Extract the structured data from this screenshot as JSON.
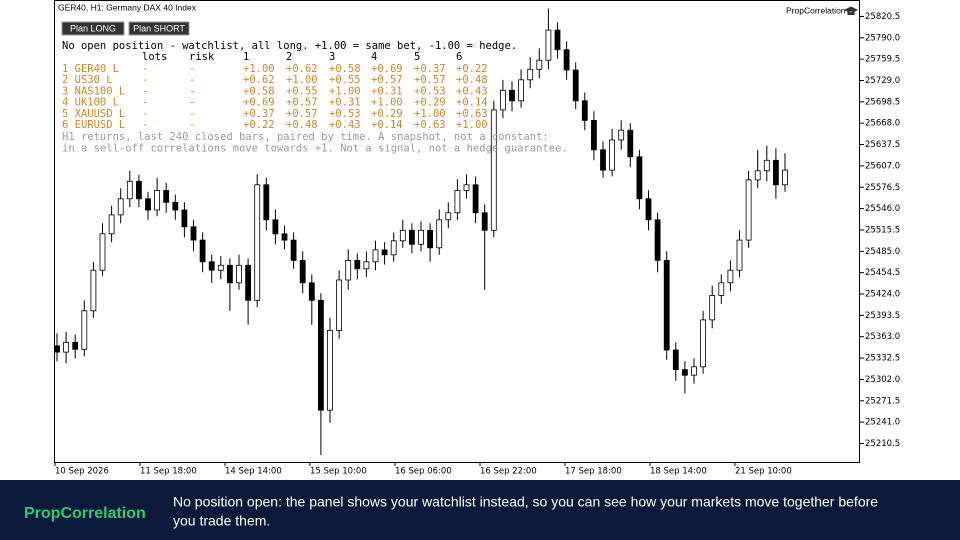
{
  "header": {
    "symbol": "GER40, H1:  Germany DAX 40 Index",
    "brand": "PropCorrelation"
  },
  "buttons": [
    "Plan LONG",
    "Plan SHORT"
  ],
  "panel": {
    "status": "No open position - watchlist, all long. +1.00 = same bet, -1.00 = hedge.",
    "columns": [
      "lots",
      "risk",
      "1",
      "2",
      "3",
      "4",
      "5",
      "6"
    ],
    "rows": [
      [
        "1 GER40 L",
        "-",
        "-",
        "+1.00",
        "+0.62",
        "+0.58",
        "+0.69",
        "+0.37",
        "+0.22"
      ],
      [
        "2 US30 L",
        "-",
        "-",
        "+0.62",
        "+1.00",
        "+0.55",
        "+0.57",
        "+0.57",
        "+0.48"
      ],
      [
        "3 NAS100 L",
        "-",
        "-",
        "+0.58",
        "+0.55",
        "+1.00",
        "+0.31",
        "+0.53",
        "+0.43"
      ],
      [
        "4 UK100 L",
        "-",
        "-",
        "+0.69",
        "+0.57",
        "+0.31",
        "+1.00",
        "+0.29",
        "+0.14"
      ],
      [
        "5 XAUUSD L",
        "-",
        "-",
        "+0.37",
        "+0.57",
        "+0.53",
        "+0.29",
        "+1.00",
        "+0.63"
      ],
      [
        "6 EURUSD L",
        "-",
        "-",
        "+0.22",
        "+0.48",
        "+0.43",
        "+0.14",
        "+0.63",
        "+1.00"
      ]
    ],
    "notes": [
      "H1 returns, last 240 closed bars, paired by time. A snapshot, not a constant:",
      "in a sell-off correlations move towards +1. Not a signal, not a hedge guarantee."
    ]
  },
  "chart_data": {
    "type": "candlestick",
    "open": [
      25350,
      25341,
      25355,
      25345,
      25400,
      25458,
      25510,
      25537,
      25560,
      25585,
      25560,
      25544,
      25572,
      25555,
      25544,
      25520,
      25501,
      25470,
      25458,
      25465,
      25440,
      25465,
      25415,
      25580,
      25530,
      25510,
      25501,
      25472,
      25440,
      25415,
      25258,
      25372,
      25444,
      25472,
      25460,
      25470,
      25487,
      25480,
      25500,
      25515,
      25495,
      25515,
      25490,
      25530,
      25540,
      25572,
      25580,
      25540,
      25515,
      25687,
      25715,
      25700,
      25730,
      25745,
      25758,
      25801,
      25773,
      25744,
      25700,
      25672,
      25630,
      25601,
      25644,
      25658,
      25620,
      25560,
      25530,
      25472,
      25344,
      25316,
      25308,
      25320,
      25387,
      25422,
      25440,
      25458,
      25501,
      25587,
      25600,
      25615,
      25580
    ],
    "high": [
      25368,
      25370,
      25366,
      25415,
      25470,
      25525,
      25550,
      25575,
      25600,
      25594,
      25570,
      25590,
      25583,
      25566,
      25555,
      25530,
      25512,
      25480,
      25478,
      25475,
      25480,
      25475,
      25595,
      25590,
      25545,
      25522,
      25512,
      25485,
      25452,
      25425,
      25390,
      25458,
      25488,
      25482,
      25485,
      25500,
      25498,
      25512,
      25530,
      25525,
      25528,
      25525,
      25545,
      25555,
      25588,
      25595,
      25592,
      25552,
      25700,
      25730,
      25728,
      25745,
      25762,
      25775,
      25832,
      25812,
      25785,
      25755,
      25712,
      25685,
      25642,
      25660,
      25672,
      25668,
      25630,
      25572,
      25540,
      25485,
      25355,
      25328,
      25332,
      25400,
      25436,
      25452,
      25472,
      25515,
      25600,
      25630,
      25636,
      25632,
      25625
    ],
    "low": [
      25328,
      25325,
      25332,
      25335,
      25390,
      25450,
      25498,
      25525,
      25548,
      25548,
      25530,
      25535,
      25540,
      25530,
      25505,
      25485,
      25455,
      25440,
      25445,
      25400,
      25430,
      25380,
      25405,
      25515,
      25495,
      25488,
      25460,
      25425,
      25380,
      25194,
      25240,
      25360,
      25430,
      25445,
      25448,
      25458,
      25466,
      25470,
      25490,
      25482,
      25485,
      25470,
      25480,
      25518,
      25530,
      25560,
      25525,
      25430,
      25505,
      25675,
      25685,
      25690,
      25718,
      25732,
      25745,
      25760,
      25730,
      25688,
      25658,
      25615,
      25590,
      25592,
      25630,
      25605,
      25545,
      25515,
      25455,
      25330,
      25300,
      25282,
      25296,
      25310,
      25375,
      25410,
      25428,
      25448,
      25490,
      25575,
      25585,
      25560,
      25570
    ],
    "close": [
      25341,
      25355,
      25345,
      25400,
      25458,
      25510,
      25537,
      25560,
      25585,
      25560,
      25544,
      25572,
      25555,
      25544,
      25520,
      25501,
      25470,
      25458,
      25465,
      25440,
      25465,
      25415,
      25580,
      25530,
      25510,
      25501,
      25472,
      25440,
      25415,
      25258,
      25372,
      25444,
      25472,
      25460,
      25470,
      25487,
      25480,
      25500,
      25515,
      25495,
      25515,
      25490,
      25530,
      25540,
      25572,
      25580,
      25540,
      25515,
      25687,
      25715,
      25700,
      25730,
      25745,
      25758,
      25801,
      25773,
      25744,
      25700,
      25672,
      25630,
      25601,
      25644,
      25658,
      25620,
      25560,
      25530,
      25472,
      25344,
      25316,
      25308,
      25320,
      25387,
      25422,
      25440,
      25458,
      25501,
      25587,
      25600,
      25615,
      25580,
      25601
    ],
    "ylim": [
      25184,
      25844
    ],
    "yticks": [
      25820.5,
      {
        "value": 25790,
        "label": "25790.0"
      },
      25759.5,
      {
        "value": 25729,
        "label": "25729.0"
      },
      25698.5,
      {
        "value": 25668,
        "label": "25668.0"
      },
      25637.5,
      {
        "value": 25607,
        "label": "25607.0"
      },
      25576.5,
      {
        "value": 25546,
        "label": "25546.0"
      },
      25515.5,
      {
        "value": 25485,
        "label": "25485.0"
      },
      25454.5,
      {
        "value": 25424,
        "label": "25424.0"
      },
      25393.5,
      {
        "value": 25363,
        "label": "25363.0"
      },
      25332.5,
      {
        "value": 25302,
        "label": "25302.0"
      },
      25271.5,
      {
        "value": 25241,
        "label": "25241.0"
      },
      25210.5
    ],
    "xtick_labels": [
      "10 Sep 2026",
      "11 Sep 18:00",
      "14 Sep 14:00",
      "15 Sep 10:00",
      "16 Sep 06:00",
      "16 Sep 22:00",
      "17 Sep 18:00",
      "18 Sep 14:00",
      "21 Sep 10:00"
    ],
    "up_color": "#ffffff",
    "down_color": "#000000"
  },
  "banner": {
    "brand": "PropCorrelation",
    "caption": [
      "No position open: the panel shows your watchlist instead, so you can see how your markets move together before",
      "you trade them."
    ]
  }
}
